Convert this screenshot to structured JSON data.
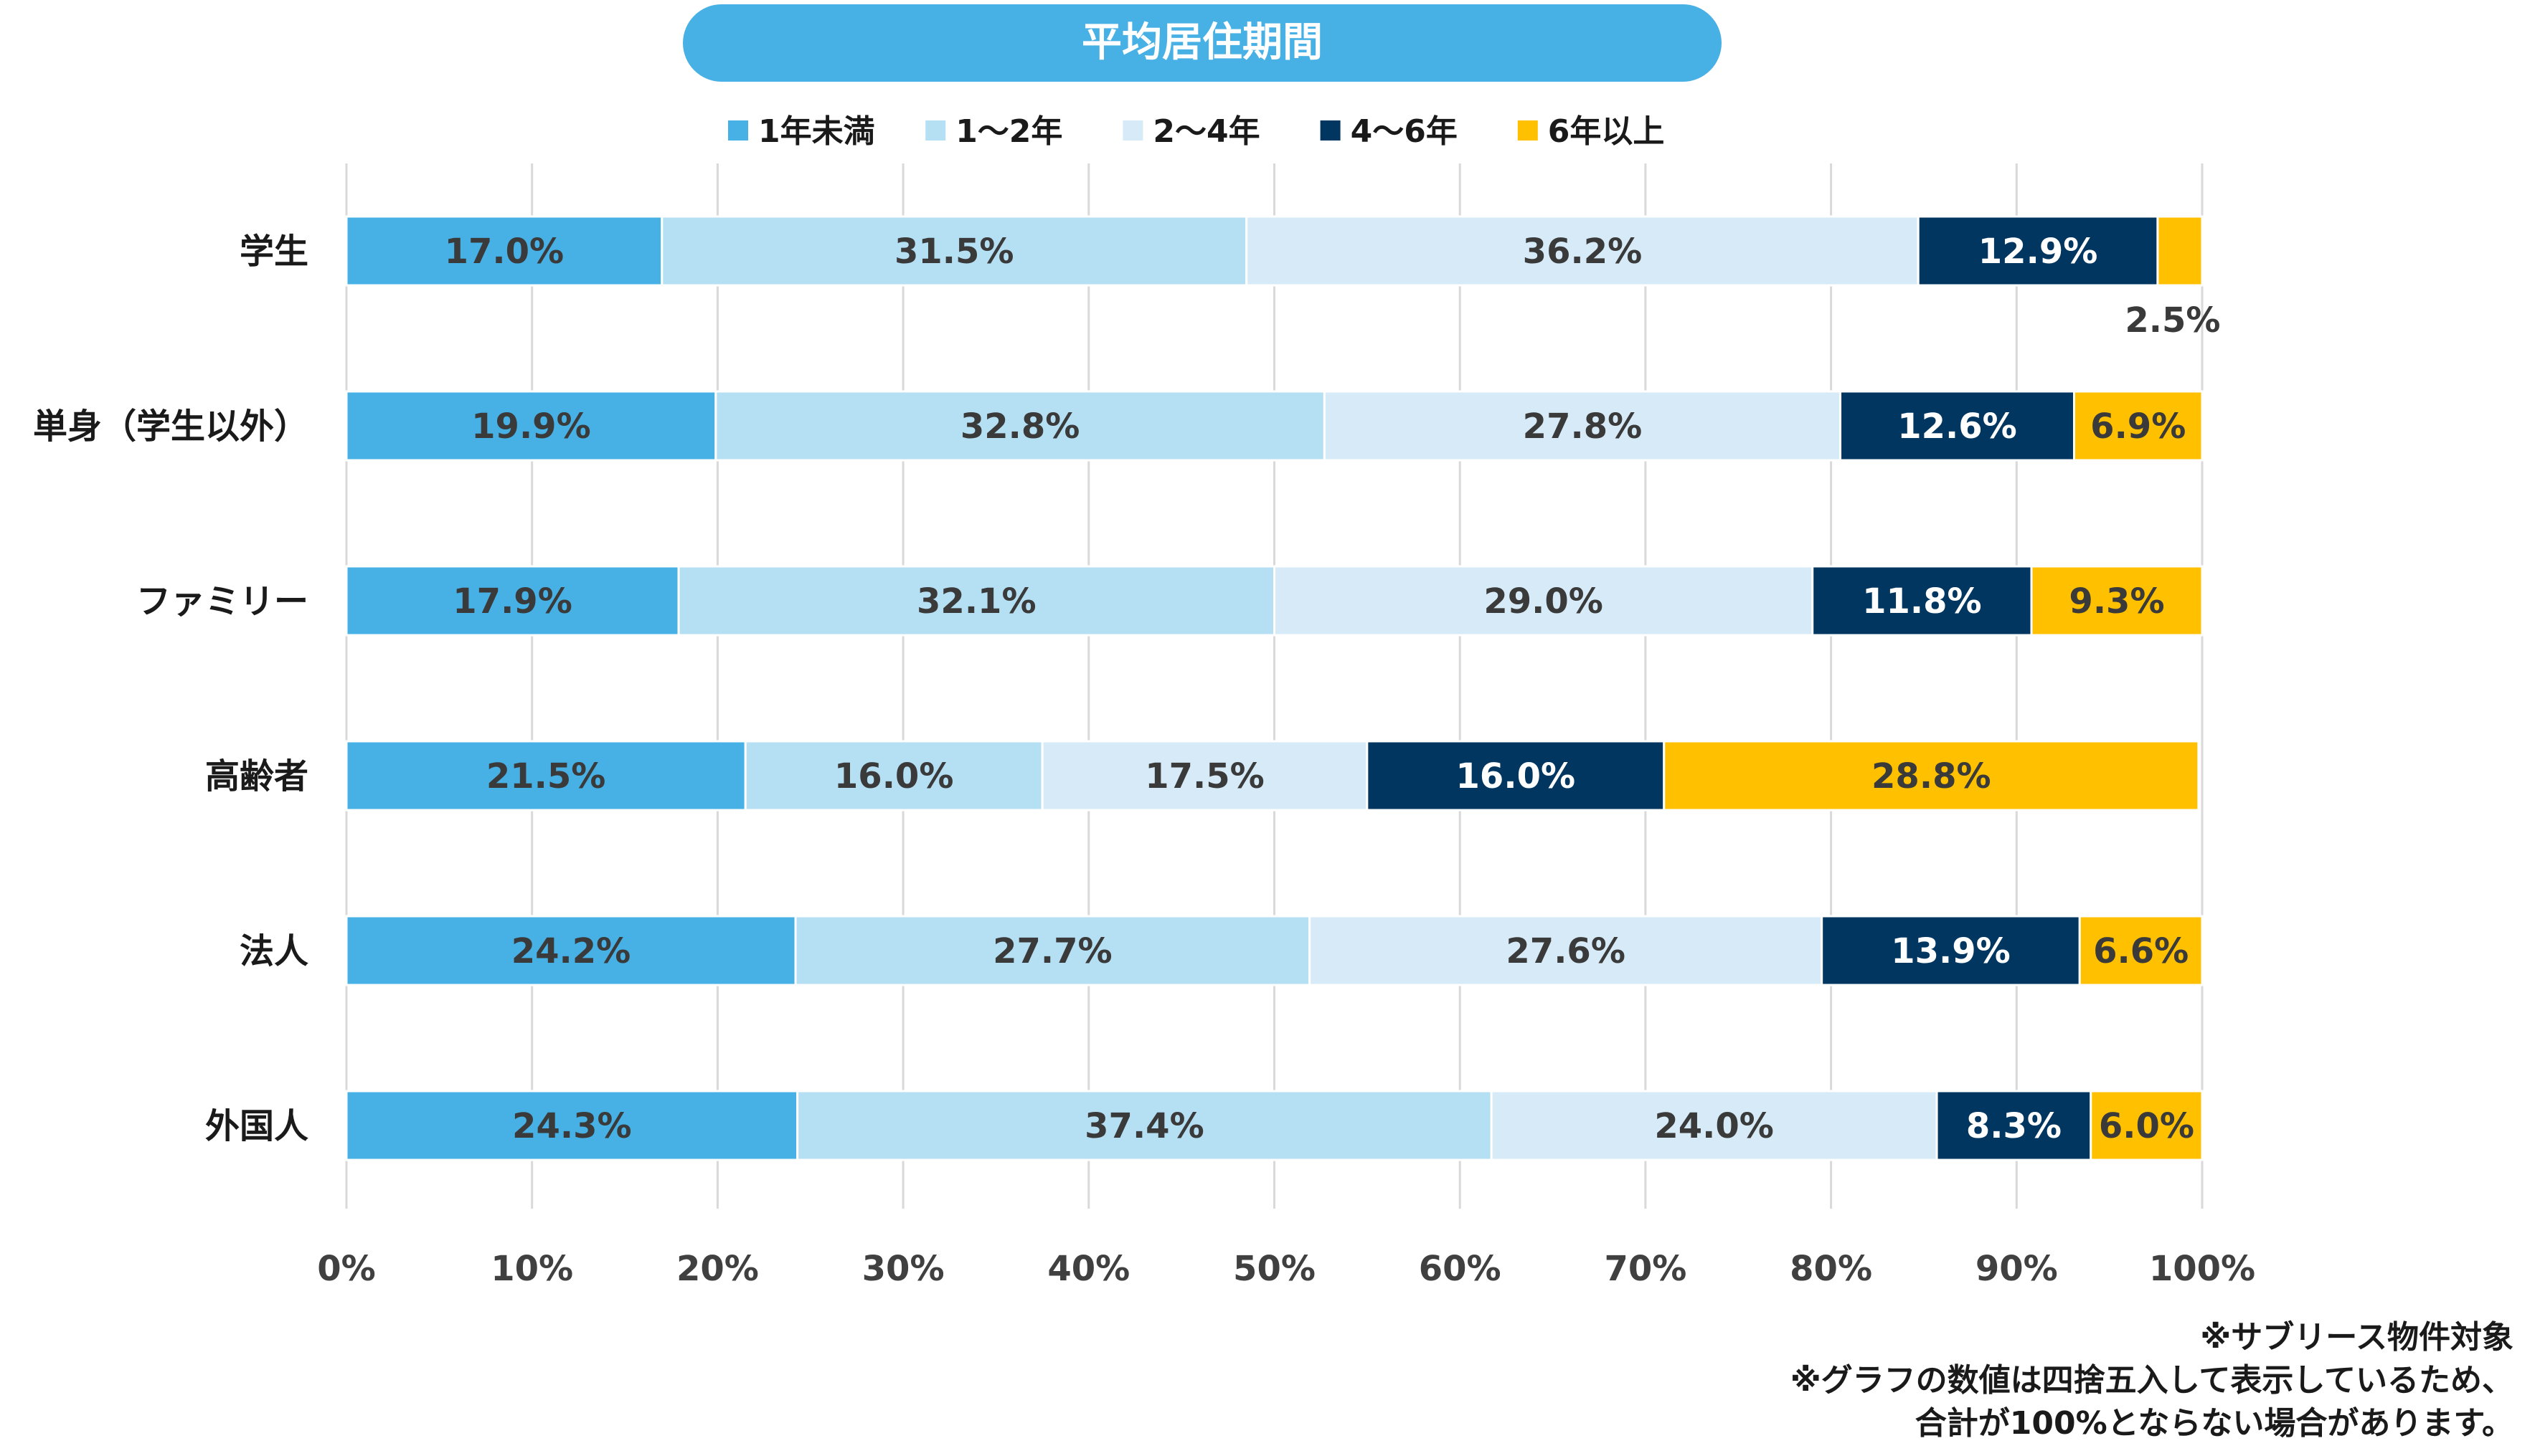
{
  "chart_data": {
    "type": "bar",
    "orientation": "horizontal",
    "stacked": true,
    "title": "平均居住期間",
    "categories": [
      "学生",
      "単身（学生以外）",
      "ファミリー",
      "高齢者",
      "法人",
      "外国人"
    ],
    "series": [
      {
        "name": "1年未満",
        "color": "#47B0E5",
        "values": [
          17.0,
          19.9,
          17.9,
          21.5,
          24.2,
          24.3
        ]
      },
      {
        "name": "1～2年",
        "color": "#B5DFF3",
        "values": [
          31.5,
          32.8,
          32.1,
          16.0,
          27.7,
          37.4
        ]
      },
      {
        "name": "2～4年",
        "color": "#D6EBF7",
        "values": [
          36.2,
          27.8,
          29.0,
          17.5,
          27.6,
          24.0
        ]
      },
      {
        "name": "4～6年",
        "color": "#003660",
        "values": [
          12.9,
          12.6,
          11.8,
          16.0,
          13.9,
          8.3
        ]
      },
      {
        "name": "6年以上",
        "color": "#FFC000",
        "values": [
          2.5,
          6.9,
          9.3,
          28.8,
          6.6,
          6.0
        ]
      }
    ],
    "data_labels": [
      [
        "17.0%",
        "31.5%",
        "36.2%",
        "12.9%",
        "2.5%"
      ],
      [
        "19.9%",
        "32.8%",
        "27.8%",
        "12.6%",
        "6.9%"
      ],
      [
        "17.9%",
        "32.1%",
        "29.0%",
        "11.8%",
        "9.3%"
      ],
      [
        "21.5%",
        "16.0%",
        "17.5%",
        "16.0%",
        "28.8%"
      ],
      [
        "24.2%",
        "27.7%",
        "27.6%",
        "13.9%",
        "6.6%"
      ],
      [
        "24.3%",
        "37.4%",
        "24.0%",
        "8.3%",
        "6.0%"
      ]
    ],
    "x_ticks": [
      "0%",
      "10%",
      "20%",
      "30%",
      "40%",
      "50%",
      "60%",
      "70%",
      "80%",
      "90%",
      "100%"
    ],
    "xlim": [
      0,
      100
    ],
    "grid": true,
    "legend_position": "top-center"
  },
  "notes": [
    "※サブリース物件対象",
    "※グラフの数値は四捨五入して表示しているため、",
    "合計が100%とならない場合があります。"
  ]
}
